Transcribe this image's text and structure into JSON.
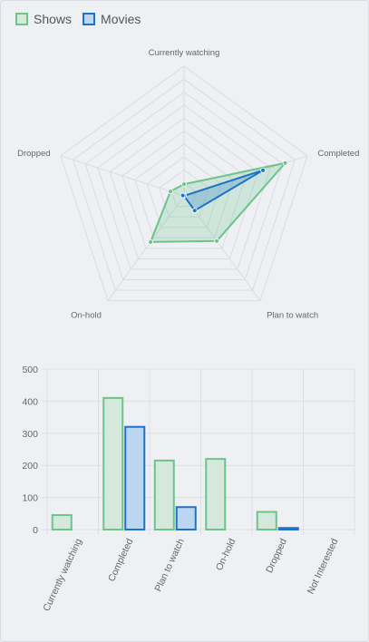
{
  "legend": {
    "items": [
      {
        "label": "Shows",
        "fill": "#d4e8dc",
        "stroke": "#6cc48a"
      },
      {
        "label": "Movies",
        "fill": "#bcd5f0",
        "stroke": "#1e73c8"
      }
    ]
  },
  "chart_data": [
    {
      "type": "radar",
      "categories": [
        "Currently watching",
        "Completed",
        "Plan to watch",
        "On-hold",
        "Dropped"
      ],
      "series": [
        {
          "name": "Shows",
          "values": [
            45,
            410,
            215,
            220,
            55
          ]
        },
        {
          "name": "Movies",
          "values": [
            0,
            320,
            70,
            0,
            5
          ]
        }
      ],
      "rlim": [
        0,
        500
      ],
      "grid": true
    },
    {
      "type": "bar",
      "categories": [
        "Currently watching",
        "Completed",
        "Plan to watch",
        "On-hold",
        "Dropped",
        "Not Interested"
      ],
      "series": [
        {
          "name": "Shows",
          "values": [
            45,
            410,
            215,
            220,
            55,
            0
          ]
        },
        {
          "name": "Movies",
          "values": [
            0,
            320,
            70,
            0,
            5,
            0
          ]
        }
      ],
      "yticks": [
        0,
        100,
        200,
        300,
        400,
        500
      ],
      "ylim": [
        0,
        500
      ],
      "grid": true
    }
  ]
}
